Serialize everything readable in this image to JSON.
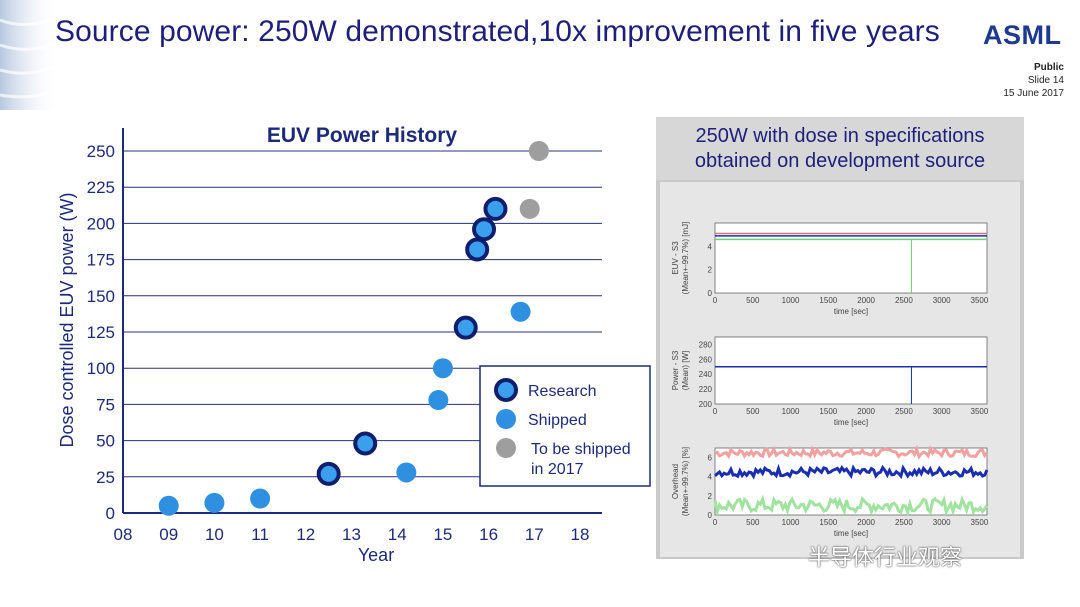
{
  "slide": {
    "title": "Source power: 250W demonstrated,10x improvement in five years",
    "logo": "ASML",
    "classification": "Public",
    "slide_number": "Slide 14",
    "date": "15 June 2017",
    "watermark": "半导体行业观察",
    "colors": {
      "title": "#1d1f7a",
      "research": "#1a3a9c",
      "shipped": "#2f8fe0",
      "to_be_shipped": "#9e9e9e"
    }
  },
  "chart_data": [
    {
      "type": "scatter",
      "title": "EUV Power History",
      "xlabel": "Year",
      "ylabel": "Dose controlled EUV power (W)",
      "x_ticks": [
        "08",
        "09",
        "10",
        "11",
        "12",
        "13",
        "14",
        "15",
        "16",
        "17",
        "18"
      ],
      "y_ticks": [
        0,
        25,
        50,
        75,
        100,
        125,
        150,
        175,
        200,
        225,
        250
      ],
      "xlim": [
        8,
        18
      ],
      "ylim": [
        0,
        250
      ],
      "grid": "horizontal",
      "legend_position": "inside-lower-right",
      "series": [
        {
          "name": "Research",
          "color": "#1a3a9c",
          "points": [
            [
              12.5,
              27
            ],
            [
              13.3,
              48
            ],
            [
              15.5,
              128
            ],
            [
              15.75,
              182
            ],
            [
              15.9,
              196
            ],
            [
              16.15,
              210
            ]
          ]
        },
        {
          "name": "Shipped",
          "color": "#2f8fe0",
          "points": [
            [
              9,
              5
            ],
            [
              10,
              7
            ],
            [
              11,
              10
            ],
            [
              14.2,
              28
            ],
            [
              14.9,
              78
            ],
            [
              15.0,
              100
            ],
            [
              16.7,
              139
            ]
          ]
        },
        {
          "name": "To be shipped in 2017",
          "legend_lines": [
            "To be shipped",
            "in 2017"
          ],
          "color": "#9e9e9e",
          "points": [
            [
              16.9,
              210
            ],
            [
              17.1,
              250
            ]
          ]
        }
      ]
    },
    {
      "type": "line",
      "header": [
        "250W with dose in specifications",
        "obtained on development source"
      ],
      "xlabel": "time [sec]",
      "x_ticks": [
        0,
        500,
        1000,
        1500,
        2000,
        2500,
        3000,
        3500
      ],
      "panels": [
        {
          "ylabel": [
            "EUV - S3",
            "(Mean+-99.7%) [mJ]"
          ],
          "y_ticks": [
            0,
            2,
            4
          ],
          "ylim": [
            0,
            6
          ]
        },
        {
          "ylabel": [
            "Power - S3",
            "(Mean) [W]"
          ],
          "y_ticks": [
            200,
            220,
            240,
            260,
            280
          ],
          "ylim": [
            200,
            290
          ]
        },
        {
          "ylabel": [
            "Overhead",
            "(Mean+-99.7%) [%]"
          ],
          "y_ticks": [
            0,
            2,
            4,
            6
          ],
          "ylim": [
            0,
            7
          ]
        }
      ]
    }
  ]
}
